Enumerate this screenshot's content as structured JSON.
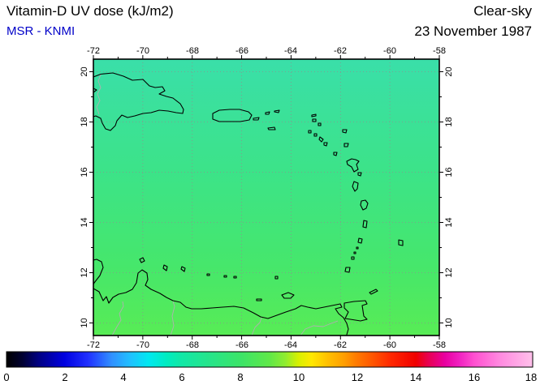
{
  "header": {
    "title": "Vitamin-D UV dose (kJ/m2)",
    "source": "MSR - KNMI",
    "condition": "Clear-sky",
    "date": "23 November 1987"
  },
  "map": {
    "lon_ticks": [
      "-72",
      "-70",
      "-68",
      "-66",
      "-64",
      "-62",
      "-60",
      "-58"
    ],
    "lat_ticks": [
      "20",
      "18",
      "16",
      "14",
      "12",
      "10"
    ]
  },
  "colorbar": {
    "ticks": [
      "0",
      "2",
      "4",
      "6",
      "8",
      "10",
      "12",
      "14",
      "16",
      "18"
    ],
    "min": 0,
    "max": 18
  },
  "colors": {
    "source_text": "#0000c8",
    "map_fill_top": "#3adfa9",
    "map_fill_bottom": "#58ec55",
    "colorbar_sequence": [
      "#000000",
      "#0000e0",
      "#20c0ff",
      "#10e8a8",
      "#3ce468",
      "#d8f000",
      "#ff7800",
      "#f00000",
      "#e800a0",
      "#ffc0ea"
    ]
  },
  "chart_data": {
    "type": "heatmap",
    "title": "Vitamin-D UV dose (kJ/m2)",
    "subtitle": "Clear-sky, 23 November 1987, MSR - KNMI",
    "lon_range": [
      -72,
      -58
    ],
    "lat_range": [
      10,
      20
    ],
    "colorbar": {
      "min": 0,
      "max": 18,
      "tick_step": 2,
      "units": "kJ/m2"
    },
    "field_description": "smooth gradient, cyan-green (~6.5) at north edge to green (~8.5) at south edge"
  }
}
